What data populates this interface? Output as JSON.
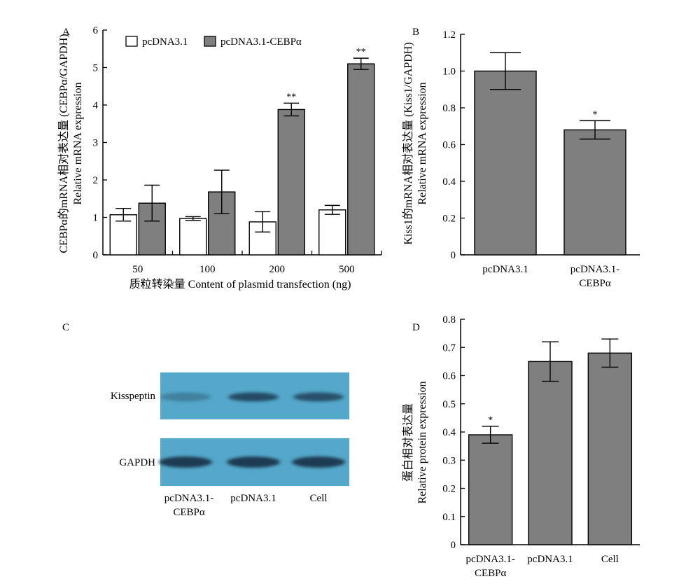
{
  "colors": {
    "bar_gray": "#7f7f7f",
    "bar_white": "#ffffff",
    "blot_bg": "#55a8ca",
    "band": "#1c3a52"
  },
  "chart_data": [
    {
      "panel": "A",
      "type": "bar",
      "categories": [
        "50",
        "100",
        "200",
        "500"
      ],
      "series": [
        {
          "name": "pcDNA3.1",
          "values": [
            1.07,
            0.97,
            0.88,
            1.2
          ],
          "errors": [
            0.17,
            0.05,
            0.27,
            0.12
          ],
          "sig": [
            "",
            "",
            "",
            ""
          ]
        },
        {
          "name": "pcDNA3.1-CEBPα",
          "values": [
            1.38,
            1.68,
            3.88,
            5.1
          ],
          "errors": [
            0.48,
            0.58,
            0.17,
            0.15
          ],
          "sig": [
            "",
            "",
            "**",
            "**"
          ]
        }
      ],
      "ylim": [
        0,
        6
      ],
      "yticks": [
        "0",
        "1",
        "2",
        "3",
        "4",
        "5",
        "6"
      ],
      "ylabel_1": "CEBPα的mRNA相对表达量 (CEBPα/GAPDH)",
      "ylabel_2": "Relative mRNA expression",
      "xlabel": "质粒转染量 Content of plasmid transfection (ng)"
    },
    {
      "panel": "B",
      "type": "bar",
      "categories": [
        "pcDNA3.1",
        "pcDNA3.1-CEBPα"
      ],
      "values": [
        1.0,
        0.68
      ],
      "errors": [
        0.1,
        0.05
      ],
      "sig": [
        "",
        "*"
      ],
      "ylim": [
        0,
        1.2
      ],
      "yticks": [
        "0",
        "0.2",
        "0.4",
        "0.6",
        "0.8",
        "1.0",
        "1.2"
      ],
      "ylabel_1": "Kiss1的mRNA相对表达量 (Kiss1/GAPDH)",
      "ylabel_2": "Relative mRNA expression"
    },
    {
      "panel": "D",
      "type": "bar",
      "categories": [
        "pcDNA3.1-CEBPα",
        "pcDNA3.1",
        "Cell"
      ],
      "values": [
        0.39,
        0.65,
        0.68
      ],
      "errors": [
        0.03,
        0.07,
        0.05
      ],
      "sig": [
        "*",
        "",
        ""
      ],
      "ylim": [
        0,
        0.8
      ],
      "yticks": [
        "0",
        "0.1",
        "0.2",
        "0.3",
        "0.4",
        "0.5",
        "0.6",
        "0.7",
        "0.8"
      ],
      "ylabel_1": "蛋白相对表达量",
      "ylabel_2": "Relative protein expression"
    }
  ],
  "blot": {
    "panel": "C",
    "rows": [
      "Kisspeptin",
      "GAPDH"
    ],
    "lanes": [
      "pcDNA3.1-CEBPα",
      "pcDNA3.1",
      "Cell"
    ],
    "kisspeptin_intensity": [
      0.35,
      0.85,
      0.8
    ],
    "gapdh_intensity": [
      1.0,
      1.0,
      1.0
    ]
  }
}
